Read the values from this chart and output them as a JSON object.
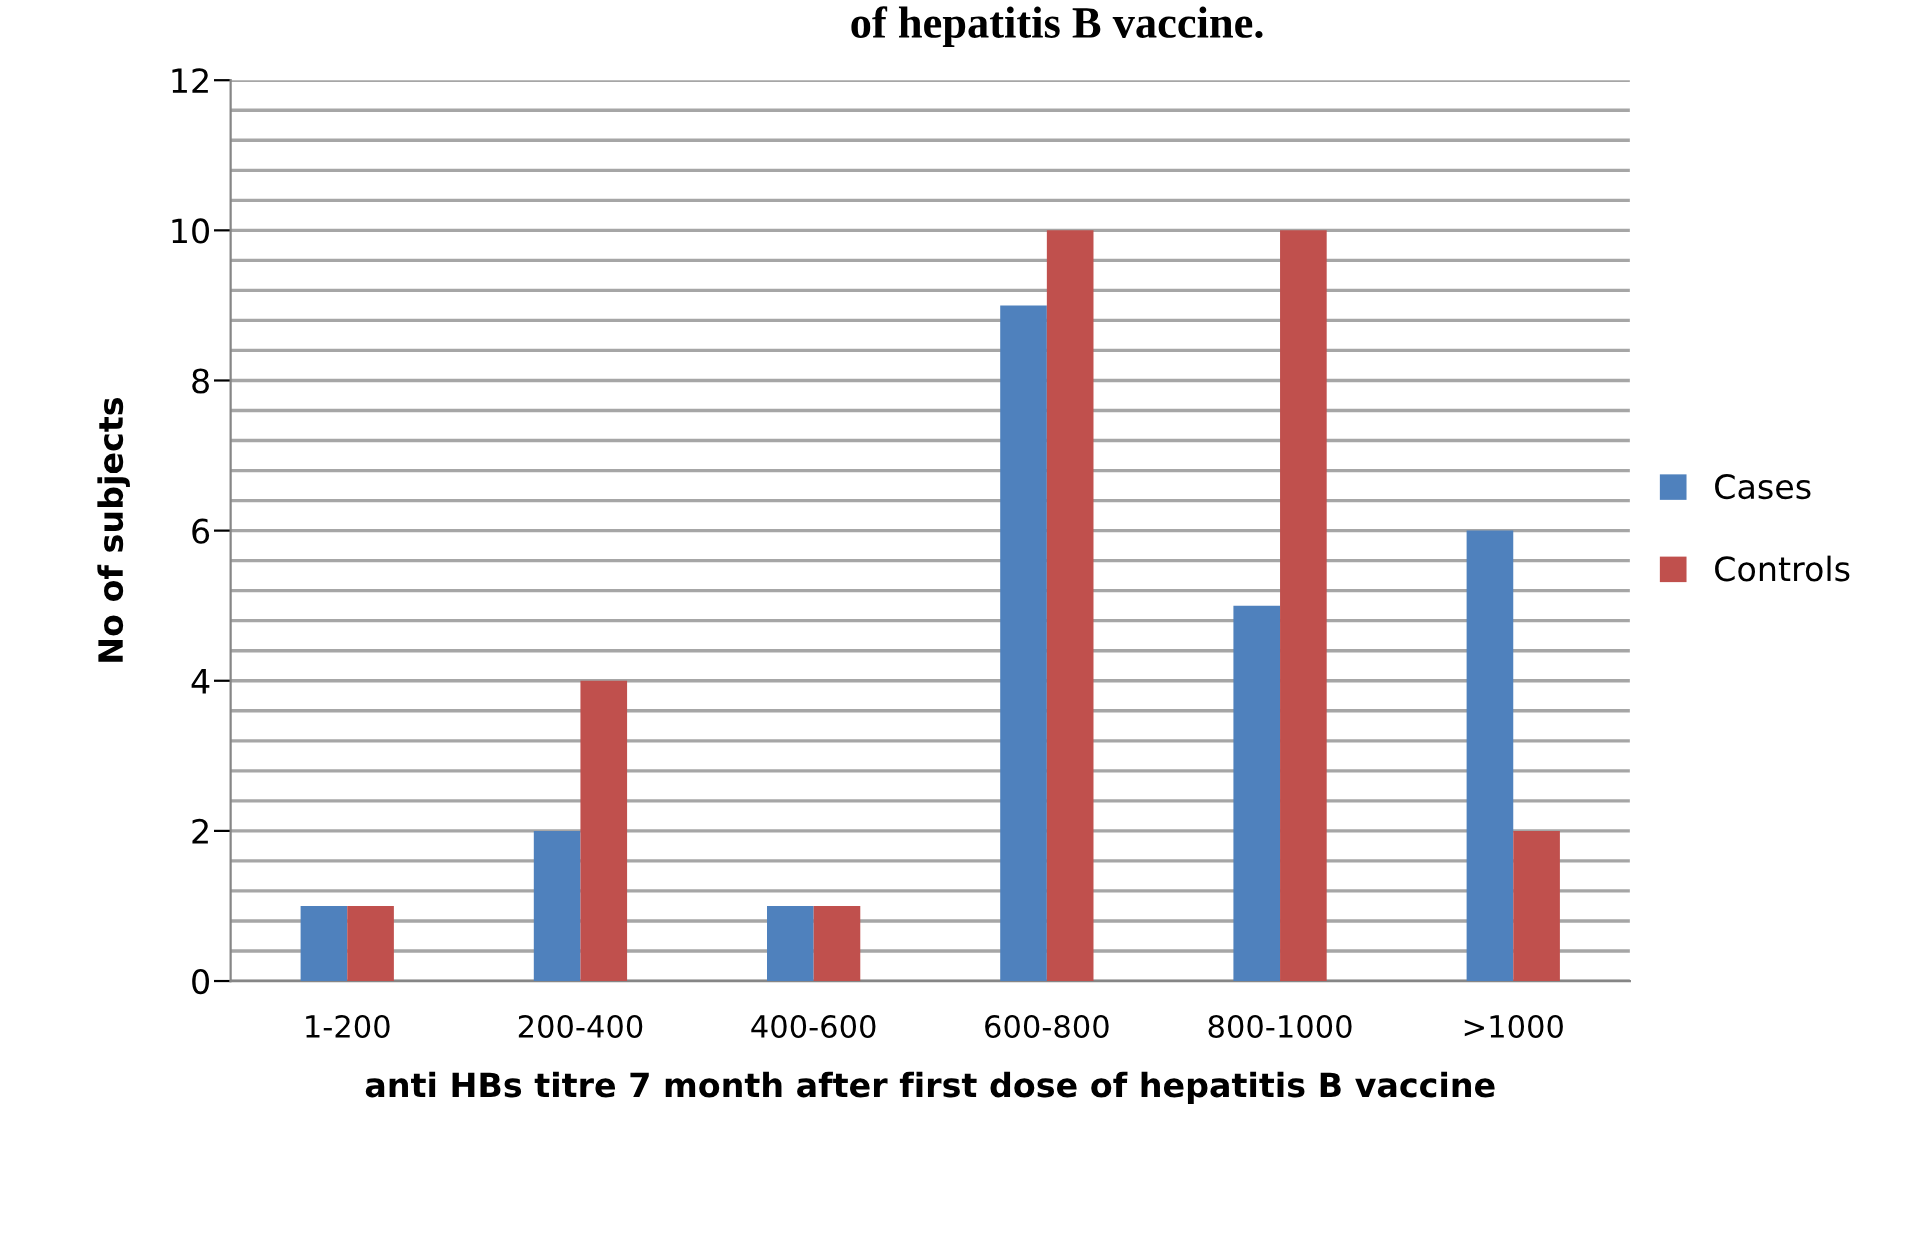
{
  "chart_data": {
    "type": "bar",
    "title": "of hepatitis B vaccine.",
    "xlabel": "anti HBs titre 7 month after first dose of hepatitis B vaccine",
    "ylabel": "No of subjects",
    "categories": [
      "1-200",
      "200-400",
      "400-600",
      "600-800",
      "800-1000",
      ">1000"
    ],
    "series": [
      {
        "name": "Cases",
        "color": "#4f81bd",
        "values": [
          1,
          2,
          1,
          9,
          5,
          6
        ]
      },
      {
        "name": "Controls",
        "color": "#c0504d",
        "values": [
          1,
          4,
          1,
          10,
          10,
          2
        ]
      }
    ],
    "ylim": [
      0,
      12
    ],
    "yticks": [
      0,
      {
        "value": 0.4,
        "label": null
      },
      {
        "value": 0.8,
        "label": null
      },
      {
        "value": 1.2,
        "label": null
      },
      {
        "value": 1.6,
        "label": null
      },
      2,
      {
        "value": 2.4,
        "label": null
      },
      {
        "value": 2.8,
        "label": null
      },
      {
        "value": 3.2,
        "label": null
      },
      {
        "value": 3.6,
        "label": null
      },
      4,
      {
        "value": 4.4,
        "label": null
      },
      {
        "value": 4.8,
        "label": null
      },
      {
        "value": 5.2,
        "label": null
      },
      {
        "value": 5.6,
        "label": null
      },
      6,
      {
        "value": 6.4,
        "label": null
      },
      {
        "value": 6.8,
        "label": null
      },
      {
        "value": 7.2,
        "label": null
      },
      {
        "value": 7.6,
        "label": null
      },
      8,
      {
        "value": 8.4,
        "label": null
      },
      {
        "value": 8.8,
        "label": null
      },
      {
        "value": 9.2,
        "label": null
      },
      {
        "value": 9.6,
        "label": null
      },
      10,
      {
        "value": 10.4,
        "label": null
      },
      {
        "value": 10.8,
        "label": null
      },
      {
        "value": 11.2,
        "label": null
      },
      {
        "value": 11.6,
        "label": null
      },
      12
    ],
    "grid": "y",
    "legend": "right"
  }
}
